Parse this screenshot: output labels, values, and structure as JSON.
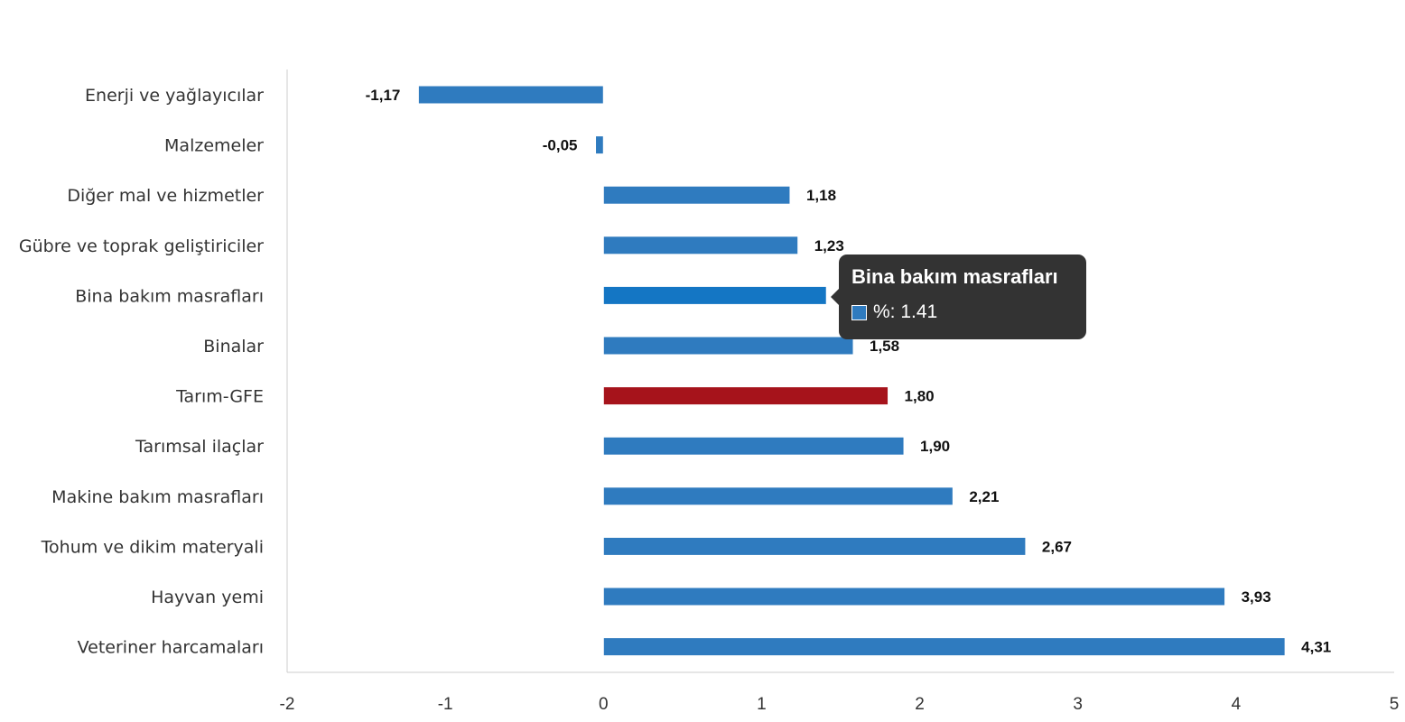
{
  "chart_data": {
    "type": "bar",
    "orientation": "horizontal",
    "categories": [
      "Enerji  ve yağlayıcılar",
      "Malzemeler",
      "Diğer mal ve hizmetler",
      "Gübre ve toprak geliştiriciler",
      "Bina bakım masrafları",
      "Binalar",
      "Tarım-GFE",
      "Tarımsal ilaçlar",
      "Makine bakım masrafları",
      "Tohum ve dikim materyali",
      "Hayvan yemi",
      "Veteriner harcamaları"
    ],
    "values": [
      -1.17,
      -0.05,
      1.18,
      1.23,
      1.41,
      1.58,
      1.8,
      1.9,
      2.21,
      2.67,
      3.93,
      4.31
    ],
    "value_labels": [
      "-1,17",
      "-0,05",
      "1,18",
      "1,23",
      "1,41",
      "1,58",
      "1,80",
      "1,90",
      "2,21",
      "2,67",
      "3,93",
      "4,31"
    ],
    "xlim": [
      -2,
      5
    ],
    "x_ticks": [
      "-2",
      "-1",
      "0",
      "1",
      "2",
      "3",
      "4",
      "5"
    ],
    "title": "",
    "xlabel": "",
    "ylabel": "",
    "grid": false,
    "legend": "none",
    "colors": {
      "default_bar": "#2f7bbf",
      "highlight_bar": "#a6131b",
      "hover_bar": "#1476c4",
      "axis": "#cccccc"
    },
    "highlighted_category": "Tarım-GFE",
    "hovered_category": "Bina bakım masrafları"
  },
  "tooltip": {
    "title": "Bina bakım masrafları",
    "series_label": "%: 1.41"
  }
}
